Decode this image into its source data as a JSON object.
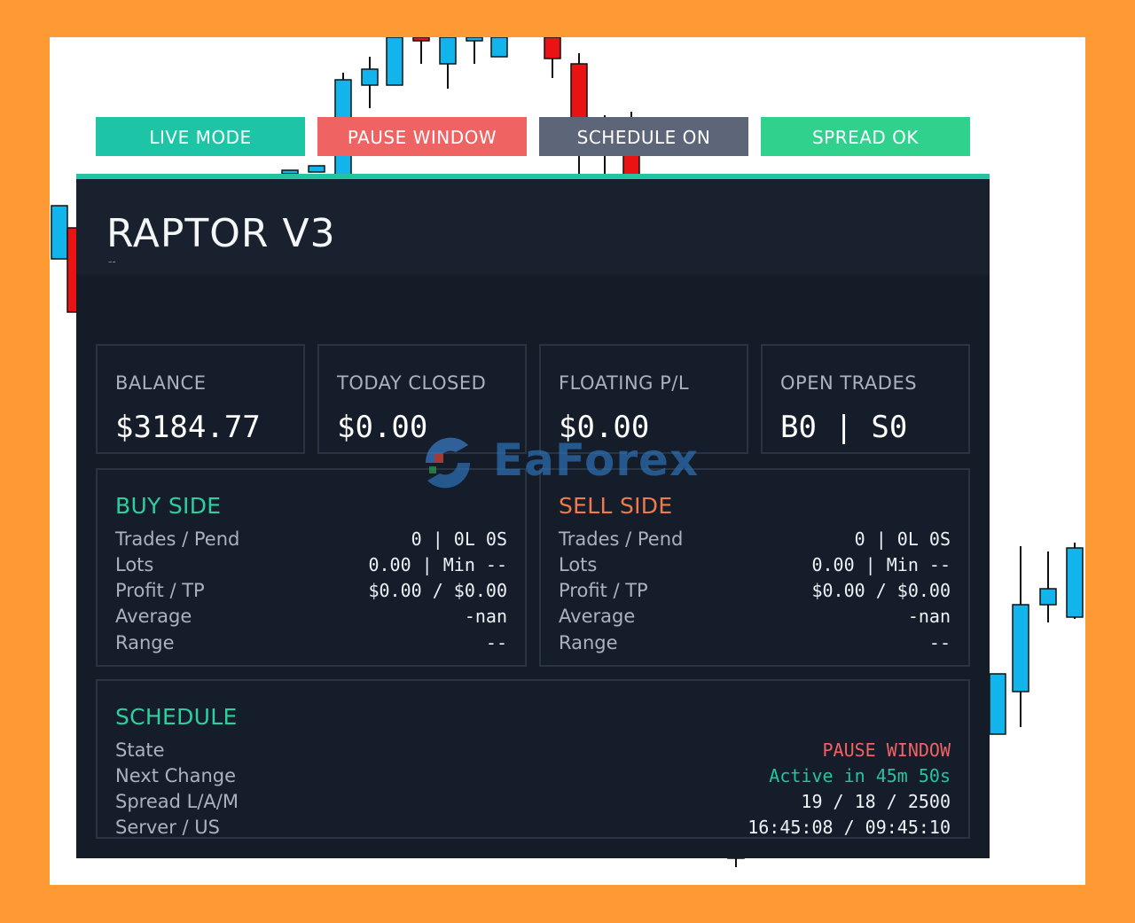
{
  "panel": {
    "title": "RAPTOR V3",
    "subtitle": "--",
    "accent": "#23c4a2"
  },
  "badges": [
    {
      "label": "LIVE MODE",
      "color": "#1dc5a6"
    },
    {
      "label": "PAUSE WINDOW",
      "color": "#f06363"
    },
    {
      "label": "SCHEDULE ON",
      "color": "#5c6678"
    },
    {
      "label": "SPREAD OK",
      "color": "#2fd18c"
    }
  ],
  "stats": [
    {
      "label": "BALANCE",
      "value": "$3184.77"
    },
    {
      "label": "TODAY CLOSED",
      "value": "$0.00"
    },
    {
      "label": "FLOATING P/L",
      "value": "$0.00"
    },
    {
      "label": "OPEN TRADES",
      "value": "B0 | S0"
    }
  ],
  "buy_side": {
    "title": "BUY SIDE",
    "title_color": "#2ecf9f",
    "rows": [
      {
        "label": "Trades / Pend",
        "value": "0 | 0L 0S"
      },
      {
        "label": "Lots",
        "value": "0.00 | Min --"
      },
      {
        "label": "Profit / TP",
        "value": "$0.00 / $0.00"
      },
      {
        "label": "Average",
        "value": "-nan"
      },
      {
        "label": "Range",
        "value": "--"
      }
    ]
  },
  "sell_side": {
    "title": "SELL SIDE",
    "title_color": "#f07a4a",
    "rows": [
      {
        "label": "Trades / Pend",
        "value": "0 | 0L 0S"
      },
      {
        "label": "Lots",
        "value": "0.00 | Min --"
      },
      {
        "label": "Profit / TP",
        "value": "$0.00 / $0.00"
      },
      {
        "label": "Average",
        "value": "-nan"
      },
      {
        "label": "Range",
        "value": "--"
      }
    ]
  },
  "schedule": {
    "title": "SCHEDULE",
    "title_color": "#2ecf9f",
    "rows": [
      {
        "label": "State",
        "value": "PAUSE WINDOW",
        "color": "#f06363"
      },
      {
        "label": "Next Change",
        "value": "Active in 45m 50s",
        "color": "#23c4a2"
      },
      {
        "label": "Spread L/A/M",
        "value": "19 / 18 / 2500",
        "color": "#eef1f5"
      },
      {
        "label": "Server / US",
        "value": "16:45:08 / 09:45:10",
        "color": "#eef1f5"
      }
    ]
  },
  "watermark": {
    "text": "EaForex",
    "icon": "eaforex-logo-icon"
  }
}
